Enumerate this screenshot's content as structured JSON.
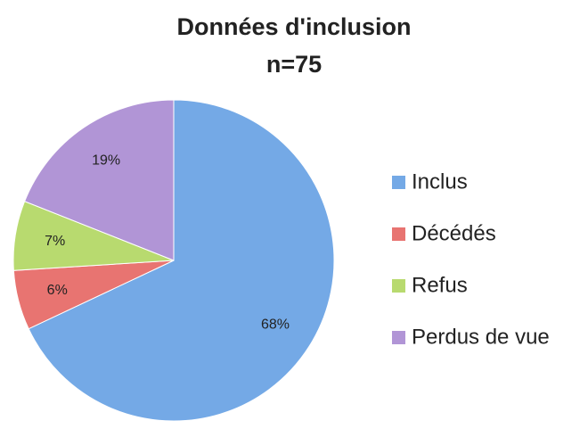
{
  "chart_data": {
    "type": "pie",
    "title": "Données d'inclusion",
    "subtitle": "n=75",
    "categories": [
      "Inclus",
      "Décédés",
      "Refus",
      "Perdus de vue"
    ],
    "values": [
      68,
      6,
      7,
      19
    ],
    "value_labels": [
      "68%",
      "6%",
      "7%",
      "19%"
    ],
    "colors": [
      "#74a9e6",
      "#e87471",
      "#b8da6f",
      "#b195d6"
    ],
    "legend": "right"
  }
}
